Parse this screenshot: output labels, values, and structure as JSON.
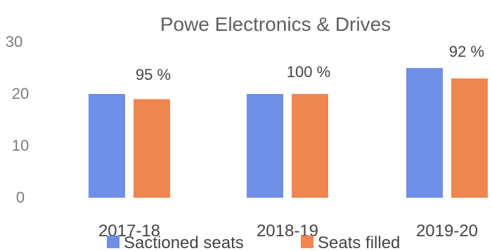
{
  "chart_data": {
    "type": "bar",
    "title": "Powe Electronics & Drives",
    "categories": [
      "2017-18",
      "2018-19",
      "2019-20"
    ],
    "series": [
      {
        "name": "Sactioned seats",
        "values": [
          20,
          20,
          25
        ],
        "color": "#6e8fe6"
      },
      {
        "name": "Seats filled",
        "values": [
          19,
          20,
          23
        ],
        "color": "#f0864f"
      }
    ],
    "annotations": [
      "95 %",
      "100 %",
      "92 %"
    ],
    "yticks": [
      "0",
      "10",
      "20",
      "30"
    ],
    "ylim": [
      0,
      30
    ],
    "grid": false,
    "legend": "bottom"
  }
}
